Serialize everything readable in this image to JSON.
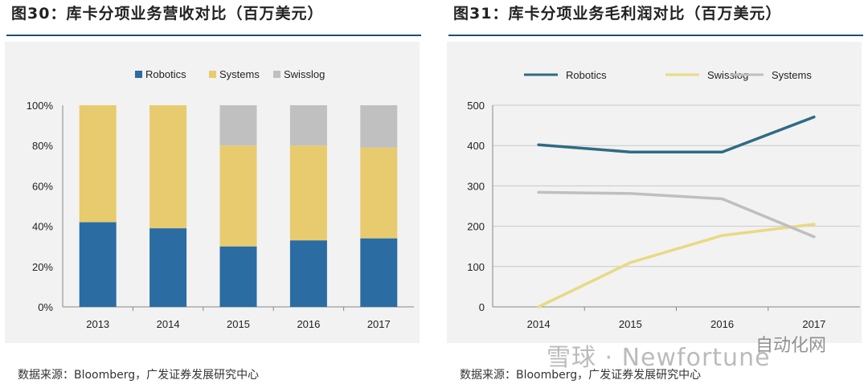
{
  "left": {
    "title": "图30：库卡分项业务营收对比（百万美元）",
    "source": "数据来源：Bloomberg，广发证券发展研究中心"
  },
  "right": {
    "title": "图31：库卡分项业务毛利润对比（百万美元）",
    "source": "数据来源：Bloomberg，广发证券发展研究中心"
  },
  "watermark": "雪球 · Newfortune",
  "watermark_tag": "自动化网",
  "chart_data": [
    {
      "type": "bar",
      "stacked": true,
      "percent": true,
      "categories": [
        "2013",
        "2014",
        "2015",
        "2016",
        "2017"
      ],
      "series": [
        {
          "name": "Robotics",
          "values": [
            42,
            39,
            30,
            33,
            34
          ],
          "color": "#2b6ca3"
        },
        {
          "name": "Systems",
          "values": [
            58,
            61,
            50,
            47,
            45
          ],
          "color": "#e8cb6e"
        },
        {
          "name": "Swisslog",
          "values": [
            0,
            0,
            20,
            20,
            21
          ],
          "color": "#c0c0c0"
        }
      ],
      "ylim": [
        0,
        100
      ],
      "yticks": [
        "0%",
        "20%",
        "40%",
        "60%",
        "80%",
        "100%"
      ],
      "legend": "top"
    },
    {
      "type": "line",
      "x": [
        "2014",
        "2015",
        "2016",
        "2017"
      ],
      "series": [
        {
          "name": "Robotics",
          "values": [
            402,
            384,
            384,
            471
          ],
          "color": "#2f6b85"
        },
        {
          "name": "Swisslog",
          "values": [
            0,
            110,
            177,
            205
          ],
          "color": "#e8d984"
        },
        {
          "name": "Systems",
          "values": [
            284,
            281,
            268,
            174
          ],
          "color": "#bfbfbf"
        }
      ],
      "ylim": [
        0,
        500
      ],
      "yticks": [
        "0",
        "100",
        "200",
        "300",
        "400",
        "500"
      ],
      "grid": true,
      "legend": "top"
    }
  ]
}
